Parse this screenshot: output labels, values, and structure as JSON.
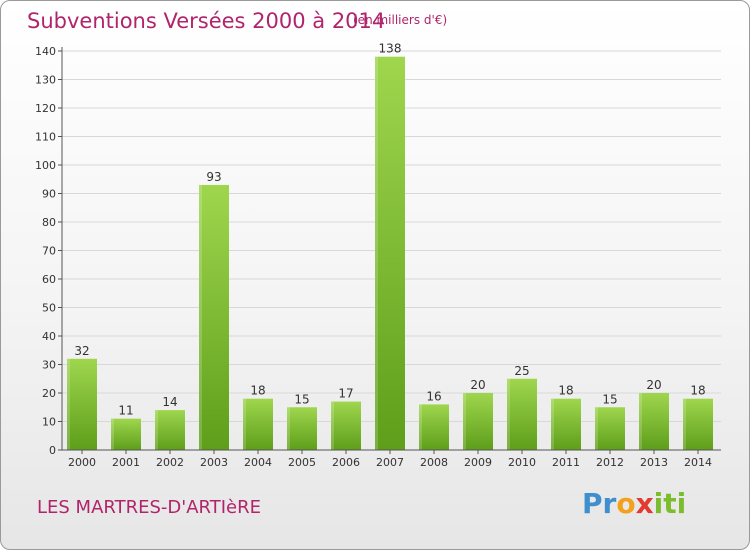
{
  "chart_data": {
    "type": "bar",
    "title": "Subventions Versées 2000 à 2014",
    "subtitle": "(en milliers d'€)",
    "categories": [
      "2000",
      "2001",
      "2002",
      "2003",
      "2004",
      "2005",
      "2006",
      "2007",
      "2008",
      "2009",
      "2010",
      "2011",
      "2012",
      "2013",
      "2014"
    ],
    "values": [
      32,
      11,
      14,
      93,
      18,
      15,
      17,
      138,
      16,
      20,
      25,
      18,
      15,
      20,
      18
    ],
    "ylim": [
      0,
      140
    ],
    "yticks": [
      0,
      10,
      20,
      30,
      40,
      50,
      60,
      70,
      80,
      90,
      100,
      110,
      120,
      130,
      140
    ],
    "grid": true,
    "bar_color": "#7cc22e",
    "bar_color_dark": "#5e9e1a",
    "grid_color": "#d8d8d8"
  },
  "footer": {
    "commune": "LES MARTRES-D'ARTIèRE",
    "logo": [
      "Pr",
      "o",
      "x",
      "iti"
    ]
  },
  "colors": {
    "title": "#b0246c",
    "frame_border": "#9a9a9a"
  }
}
